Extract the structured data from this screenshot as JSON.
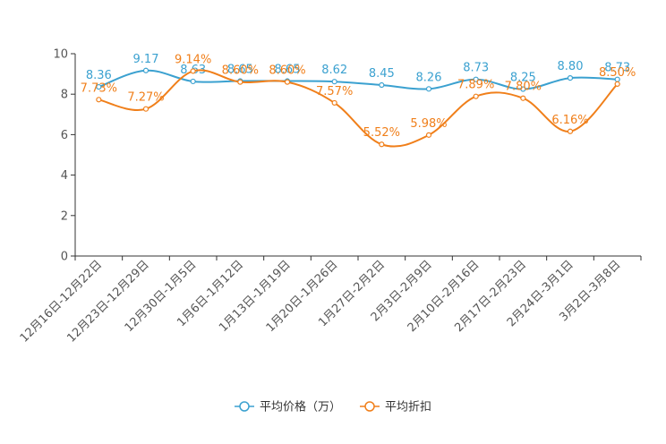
{
  "chart_data": {
    "type": "line",
    "categories": [
      "12月16日-12月22日",
      "12月23日-12月29日",
      "12月30日-1月5日",
      "1月6日-1月12日",
      "1月13日-1月19日",
      "1月20日-1月26日",
      "1月27日-2月2日",
      "2月3日-2月9日",
      "2月10日-2月16日",
      "2月17日-2月23日",
      "2月24日-3月1日",
      "3月2日-3月8日"
    ],
    "ylim": [
      0,
      10
    ],
    "yticks": [
      0,
      2,
      4,
      6,
      8,
      10
    ],
    "smooth": true,
    "series": [
      {
        "name": "平均价格（万）",
        "color": "#3ba1d0",
        "values": [
          8.36,
          9.17,
          8.63,
          8.65,
          8.65,
          8.62,
          8.45,
          8.26,
          8.73,
          8.25,
          8.8,
          8.73
        ],
        "labels": [
          "8.36",
          "9.17",
          "8.63",
          "8.65",
          "8.65",
          "8.62",
          "8.45",
          "8.26",
          "8.73",
          "8.25",
          "8.80",
          "8.73"
        ]
      },
      {
        "name": "平均折扣",
        "color": "#f07f1a",
        "values": [
          7.73,
          7.27,
          9.14,
          8.6,
          8.6,
          7.57,
          5.52,
          5.98,
          7.89,
          7.8,
          6.16,
          8.5
        ],
        "labels": [
          "7.73%",
          "7.27%",
          "9.14%",
          "8.60%",
          "8.60%",
          "7.57%",
          "5.52%",
          "5.98%",
          "7.89%",
          "7.80%",
          "6.16%",
          "8.50%"
        ]
      }
    ]
  }
}
